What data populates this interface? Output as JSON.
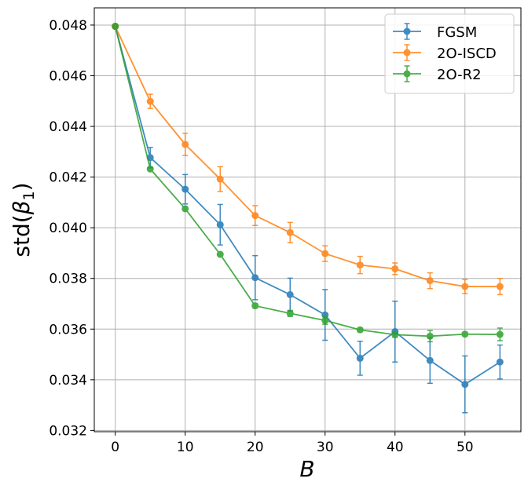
{
  "chart_data": {
    "type": "line",
    "title": "",
    "xlabel": "B",
    "ylabel_prefix": "std(",
    "ylabel_symbol": "β",
    "ylabel_sub": "1",
    "ylabel_suffix": ")",
    "xlim": [
      -3,
      58
    ],
    "ylim": [
      0.03195,
      0.04868
    ],
    "x_ticks": [
      0,
      10,
      20,
      30,
      40,
      50
    ],
    "x_tick_labels": [
      "0",
      "10",
      "20",
      "30",
      "40",
      "50"
    ],
    "y_ticks": [
      0.032,
      0.034,
      0.036,
      0.038,
      0.04,
      0.042,
      0.044,
      0.046,
      0.048
    ],
    "y_tick_labels": [
      "0.032",
      "0.034",
      "0.036",
      "0.038",
      "0.040",
      "0.042",
      "0.044",
      "0.046",
      "0.048"
    ],
    "grid": true,
    "legend_position": "top-right",
    "x": [
      0,
      5,
      10,
      15,
      20,
      25,
      30,
      35,
      40,
      45,
      50,
      55
    ],
    "series": [
      {
        "name": "FGSM",
        "color": "#1f77b4",
        "values": [
          0.04795,
          0.04277,
          0.04152,
          0.04012,
          0.03803,
          0.03736,
          0.03656,
          0.03485,
          0.0359,
          0.03476,
          0.03382,
          0.0347
        ],
        "errors": [
          0,
          0.0004,
          0.00058,
          0.0008,
          0.00087,
          0.00065,
          0.001,
          0.00067,
          0.0012,
          0.0009,
          0.00112,
          0.00067
        ]
      },
      {
        "name": "2O-ISCD",
        "color": "#ff7f0e",
        "values": [
          0.04795,
          0.04499,
          0.04329,
          0.04192,
          0.04048,
          0.03981,
          0.03898,
          0.03853,
          0.03838,
          0.03791,
          0.03768,
          0.03768
        ],
        "errors": [
          0,
          0.00028,
          0.00044,
          0.00049,
          0.00039,
          0.0004,
          0.00031,
          0.00034,
          0.00023,
          0.00031,
          0.00028,
          0.00032
        ]
      },
      {
        "name": "2O-R2",
        "color": "#2ca02c",
        "values": [
          0.04795,
          0.04232,
          0.04075,
          0.03895,
          0.03692,
          0.03662,
          0.03634,
          0.03597,
          0.03578,
          0.03572,
          0.0358,
          0.03579
        ],
        "errors": [
          0,
          5e-05,
          6e-05,
          4e-05,
          9e-05,
          0.00012,
          0.00015,
          8e-05,
          0.00011,
          0.00022,
          8e-05,
          0.00025
        ]
      }
    ]
  }
}
